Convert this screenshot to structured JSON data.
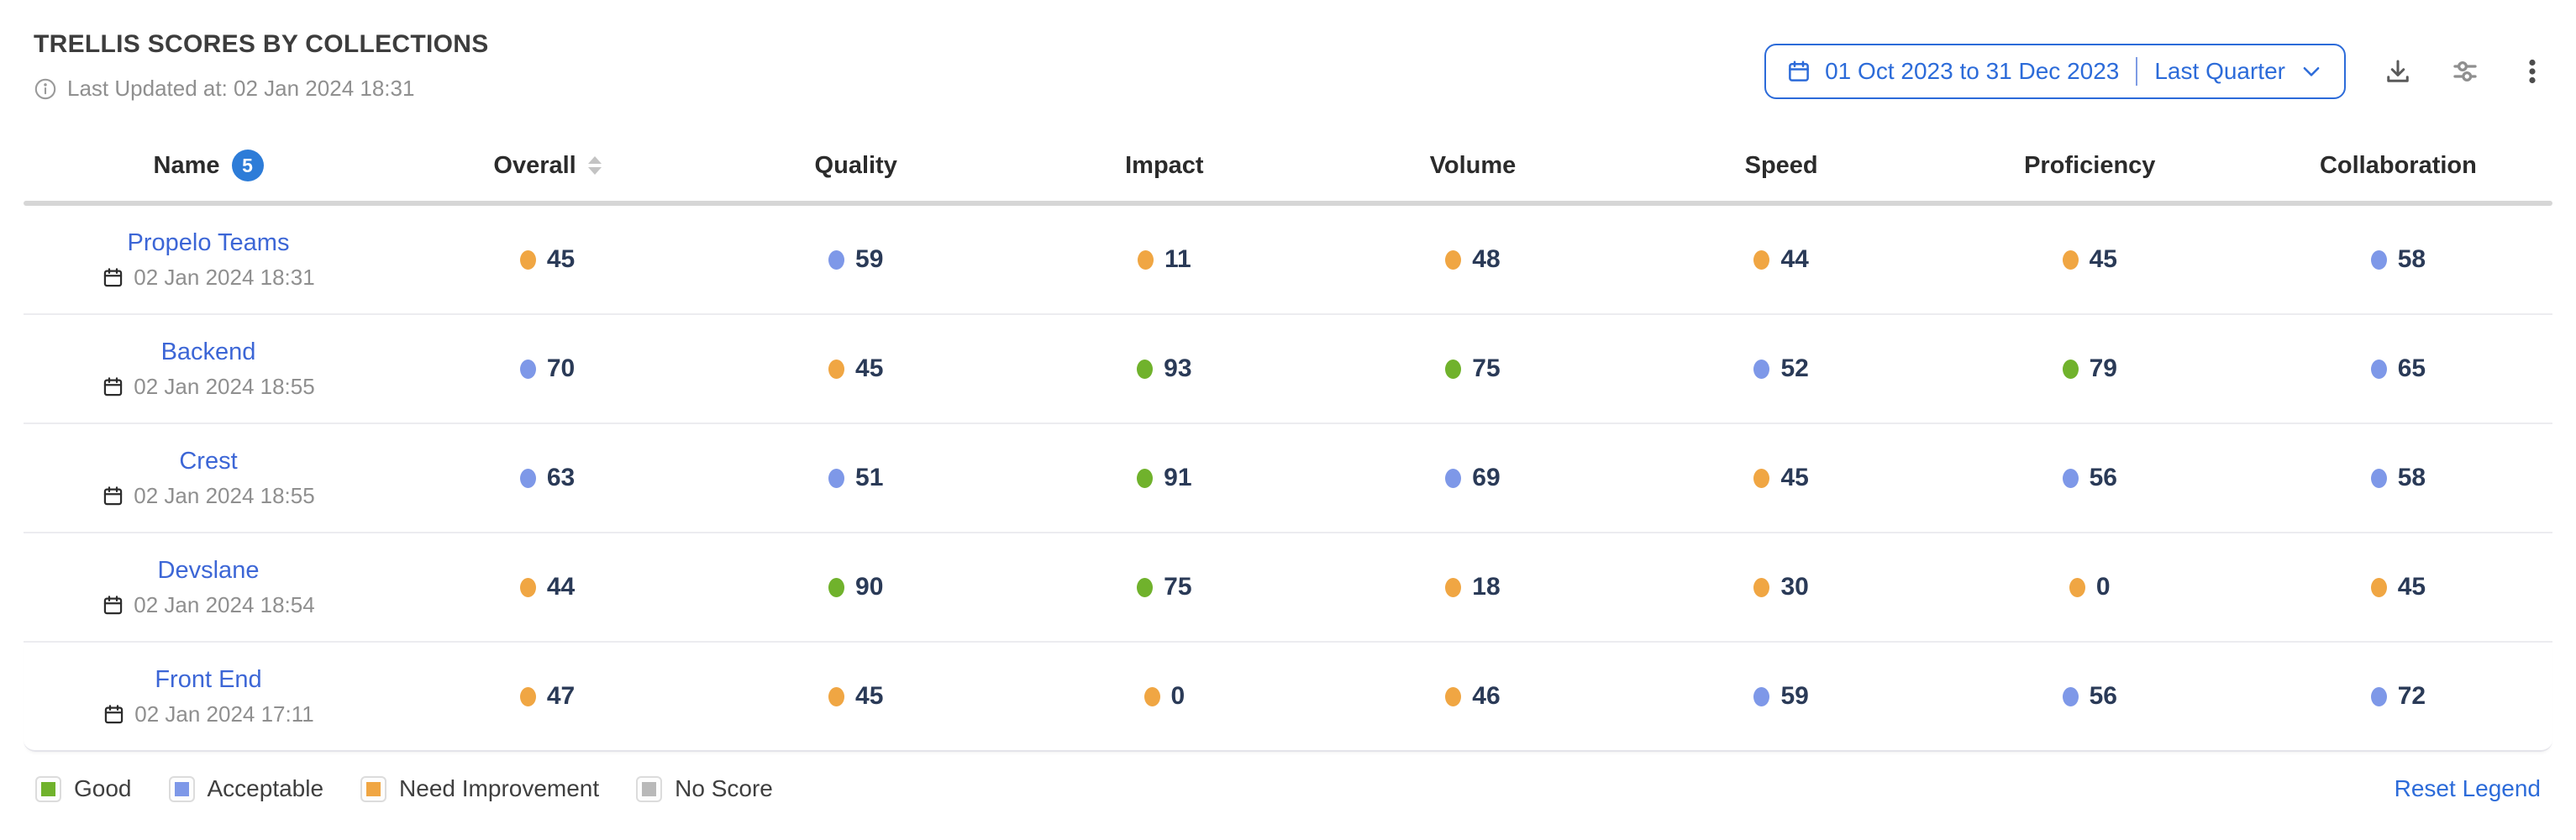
{
  "header": {
    "title": "TRELLIS SCORES BY COLLECTIONS",
    "last_updated": "Last Updated at: 02 Jan 2024 18:31"
  },
  "controls": {
    "date_range": {
      "range_label": "01 Oct 2023 to 31 Dec 2023",
      "preset_label": "Last Quarter"
    },
    "icons": [
      "download-icon",
      "filter-sliders-icon",
      "kebab-menu-icon"
    ]
  },
  "colors": {
    "accent": "#2c6bd9",
    "link": "#3c66d6",
    "badge": "#2d7cd8",
    "good": "#70b22c",
    "acceptable": "#7e98e8",
    "need_improvement": "#f0a643",
    "no_score": "#b9b9b9",
    "score_text": "#2a3a57"
  },
  "table": {
    "columns": [
      {
        "key": "name",
        "label": "Name",
        "badge_count": "5"
      },
      {
        "key": "overall",
        "label": "Overall",
        "sortable": true
      },
      {
        "key": "quality",
        "label": "Quality"
      },
      {
        "key": "impact",
        "label": "Impact"
      },
      {
        "key": "volume",
        "label": "Volume"
      },
      {
        "key": "speed",
        "label": "Speed"
      },
      {
        "key": "proficiency",
        "label": "Proficiency"
      },
      {
        "key": "collaboration",
        "label": "Collaboration"
      }
    ],
    "rows": [
      {
        "name": "Propelo Teams",
        "updated_at": "02 Jan 2024 18:31",
        "scores": [
          {
            "value": 45,
            "status": "need_improvement"
          },
          {
            "value": 59,
            "status": "acceptable"
          },
          {
            "value": 11,
            "status": "need_improvement"
          },
          {
            "value": 48,
            "status": "need_improvement"
          },
          {
            "value": 44,
            "status": "need_improvement"
          },
          {
            "value": 45,
            "status": "need_improvement"
          },
          {
            "value": 58,
            "status": "acceptable"
          }
        ]
      },
      {
        "name": "Backend",
        "updated_at": "02 Jan 2024 18:55",
        "scores": [
          {
            "value": 70,
            "status": "acceptable"
          },
          {
            "value": 45,
            "status": "need_improvement"
          },
          {
            "value": 93,
            "status": "good"
          },
          {
            "value": 75,
            "status": "good"
          },
          {
            "value": 52,
            "status": "acceptable"
          },
          {
            "value": 79,
            "status": "good"
          },
          {
            "value": 65,
            "status": "acceptable"
          }
        ]
      },
      {
        "name": "Crest",
        "updated_at": "02 Jan 2024 18:55",
        "scores": [
          {
            "value": 63,
            "status": "acceptable"
          },
          {
            "value": 51,
            "status": "acceptable"
          },
          {
            "value": 91,
            "status": "good"
          },
          {
            "value": 69,
            "status": "acceptable"
          },
          {
            "value": 45,
            "status": "need_improvement"
          },
          {
            "value": 56,
            "status": "acceptable"
          },
          {
            "value": 58,
            "status": "acceptable"
          }
        ]
      },
      {
        "name": "Devslane",
        "updated_at": "02 Jan 2024 18:54",
        "scores": [
          {
            "value": 44,
            "status": "need_improvement"
          },
          {
            "value": 90,
            "status": "good"
          },
          {
            "value": 75,
            "status": "good"
          },
          {
            "value": 18,
            "status": "need_improvement"
          },
          {
            "value": 30,
            "status": "need_improvement"
          },
          {
            "value": 0,
            "status": "need_improvement"
          },
          {
            "value": 45,
            "status": "need_improvement"
          }
        ]
      },
      {
        "name": "Front End",
        "updated_at": "02 Jan 2024 17:11",
        "scores": [
          {
            "value": 47,
            "status": "need_improvement"
          },
          {
            "value": 45,
            "status": "need_improvement"
          },
          {
            "value": 0,
            "status": "need_improvement"
          },
          {
            "value": 46,
            "status": "need_improvement"
          },
          {
            "value": 59,
            "status": "acceptable"
          },
          {
            "value": 56,
            "status": "acceptable"
          },
          {
            "value": 72,
            "status": "acceptable"
          }
        ]
      }
    ]
  },
  "legend": {
    "items": [
      {
        "label": "Good",
        "status": "good"
      },
      {
        "label": "Acceptable",
        "status": "acceptable"
      },
      {
        "label": "Need Improvement",
        "status": "need_improvement"
      },
      {
        "label": "No Score",
        "status": "no_score"
      }
    ],
    "reset_label": "Reset Legend"
  }
}
